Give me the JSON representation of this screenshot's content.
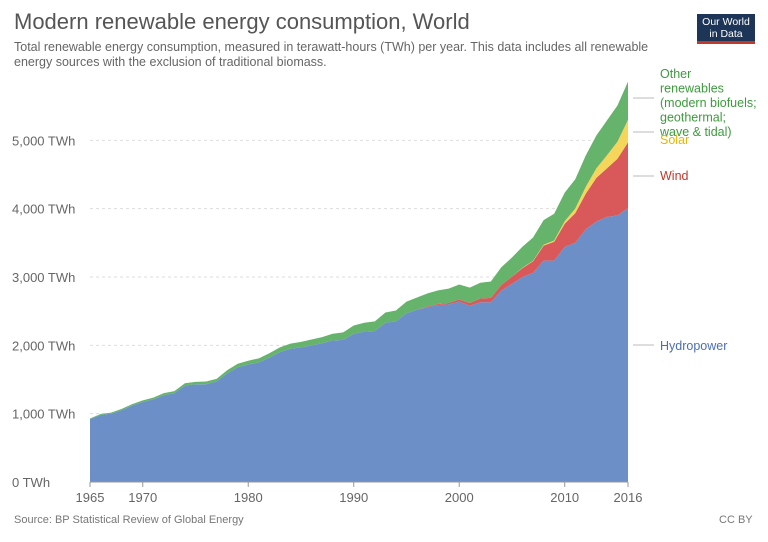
{
  "header": {
    "title": "Modern renewable energy consumption, World",
    "subtitle": "Total renewable energy consumption, measured in terawatt-hours (TWh) per year. This data includes all renewable energy sources with the exclusion of traditional biomass."
  },
  "logo": {
    "line1": "Our World",
    "line2": "in Data",
    "colors": {
      "background": "#1d3557",
      "accent": "#c0392b"
    }
  },
  "footer": {
    "source": "Source: BP Statistical Review of Global Energy",
    "license": "CC BY"
  },
  "chart_data": {
    "type": "area",
    "stacked": true,
    "grid": "horizontal dashed",
    "legend_placement": "right, inline labels",
    "xlim": [
      1965,
      2016
    ],
    "ylim": [
      0,
      6000
    ],
    "x_ticks": [
      1965,
      1970,
      1980,
      1990,
      2000,
      2010,
      2016
    ],
    "x_tick_labels": [
      "1965",
      "1970",
      "1980",
      "1990",
      "2000",
      "2010",
      "2016"
    ],
    "y_ticks": [
      0,
      1000,
      2000,
      3000,
      4000,
      5000
    ],
    "y_tick_labels": [
      "0 TWh",
      "1,000 TWh",
      "2,000 TWh",
      "3,000 TWh",
      "4,000 TWh",
      "5,000 TWh"
    ],
    "x": [
      1965,
      1966,
      1967,
      1968,
      1969,
      1970,
      1971,
      1972,
      1973,
      1974,
      1975,
      1976,
      1977,
      1978,
      1979,
      1980,
      1981,
      1982,
      1983,
      1984,
      1985,
      1986,
      1987,
      1988,
      1989,
      1990,
      1991,
      1992,
      1993,
      1994,
      1995,
      1996,
      1997,
      1998,
      1999,
      2000,
      2001,
      2002,
      2003,
      2004,
      2005,
      2006,
      2007,
      2008,
      2009,
      2010,
      2011,
      2012,
      2013,
      2014,
      2015,
      2016
    ],
    "series": [
      {
        "name": "Hydropower",
        "color": "#6d8fc8",
        "values": [
          920,
          980,
          1000,
          1050,
          1120,
          1170,
          1210,
          1270,
          1300,
          1410,
          1430,
          1430,
          1470,
          1590,
          1680,
          1720,
          1750,
          1820,
          1900,
          1950,
          1970,
          2000,
          2030,
          2070,
          2080,
          2170,
          2200,
          2210,
          2330,
          2350,
          2470,
          2520,
          2560,
          2590,
          2600,
          2640,
          2580,
          2630,
          2630,
          2800,
          2900,
          3000,
          3060,
          3240,
          3240,
          3440,
          3500,
          3700,
          3810,
          3880,
          3900,
          4010
        ]
      },
      {
        "name": "Wind",
        "color": "#d9595b",
        "values": [
          0,
          0,
          0,
          0,
          0,
          0,
          0,
          0,
          0,
          0,
          0,
          0,
          0,
          0,
          0,
          0,
          0,
          0,
          0,
          0,
          0,
          0,
          0,
          0,
          0,
          0,
          0,
          0,
          0,
          0,
          0,
          0,
          10,
          15,
          20,
          30,
          40,
          55,
          65,
          85,
          105,
          130,
          170,
          220,
          275,
          340,
          435,
          520,
          640,
          710,
          830,
          960
        ]
      },
      {
        "name": "Solar",
        "color": "#f5d65a",
        "values": [
          0,
          0,
          0,
          0,
          0,
          0,
          0,
          0,
          0,
          0,
          0,
          0,
          0,
          0,
          0,
          0,
          0,
          0,
          0,
          0,
          0,
          0,
          0,
          0,
          0,
          0,
          0,
          0,
          0,
          0,
          0,
          0,
          0,
          0,
          0,
          0,
          0,
          0,
          0,
          0,
          0,
          5,
          8,
          12,
          20,
          35,
          65,
          100,
          140,
          190,
          250,
          330
        ]
      },
      {
        "name": "Other renewables (modern biofuels; geothermal; wave & tidal)",
        "color": "#66b36b",
        "values": [
          10,
          15,
          15,
          20,
          20,
          25,
          25,
          30,
          30,
          35,
          35,
          40,
          40,
          45,
          50,
          55,
          60,
          65,
          70,
          75,
          80,
          85,
          90,
          100,
          110,
          120,
          130,
          140,
          150,
          160,
          170,
          180,
          190,
          200,
          210,
          220,
          225,
          230,
          240,
          260,
          280,
          310,
          340,
          360,
          390,
          420,
          430,
          460,
          480,
          510,
          530,
          560
        ]
      }
    ],
    "legend_labels": [
      {
        "series": "Other renewables (modern biofuels; geothermal; wave & tidal)",
        "lines": [
          "Other",
          "renewables",
          "(modern biofuels;",
          "geothermal;",
          "wave & tidal)"
        ]
      },
      {
        "series": "Solar",
        "lines": [
          "Solar"
        ]
      },
      {
        "series": "Wind",
        "lines": [
          "Wind"
        ]
      },
      {
        "series": "Hydropower",
        "lines": [
          "Hydropower"
        ]
      }
    ]
  }
}
